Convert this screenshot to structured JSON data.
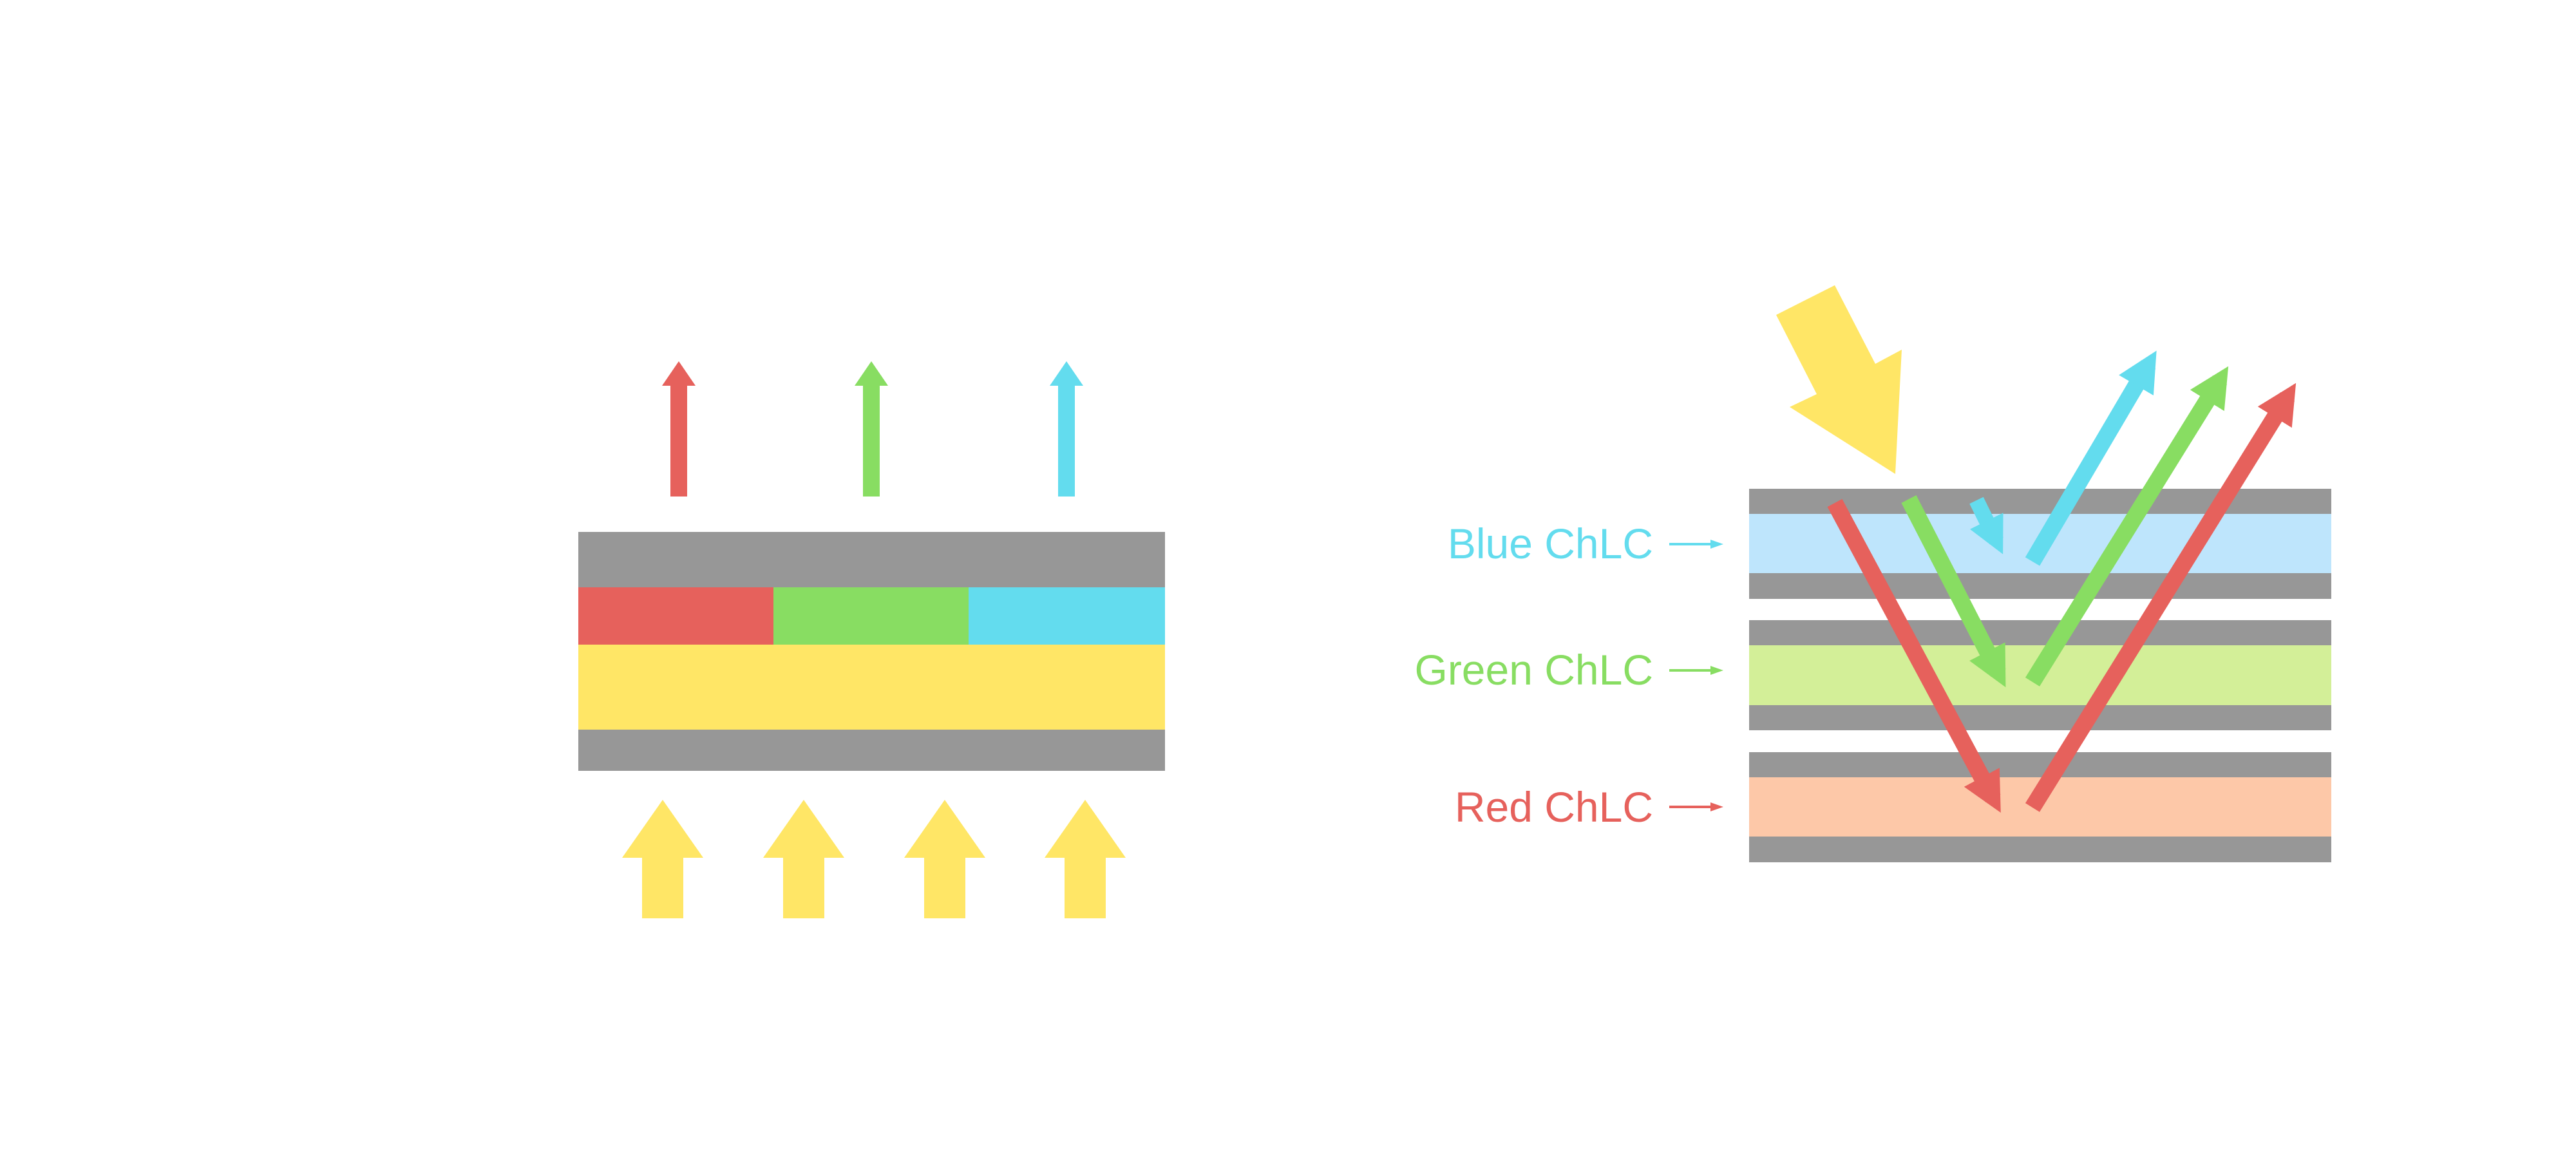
{
  "colors": {
    "red": "#E6615C",
    "green": "#88DD62",
    "blue": "#63DCEE",
    "yellow": "#FFE666",
    "gray": "#979797",
    "blue_layer": "#BEE5FC",
    "green_layer": "#D3EF98",
    "red_layer": "#FDC8A8"
  },
  "right_diagram": {
    "labels": {
      "blue": "Blue ChLC",
      "green": "Green ChLC",
      "red": "Red ChLC"
    }
  }
}
